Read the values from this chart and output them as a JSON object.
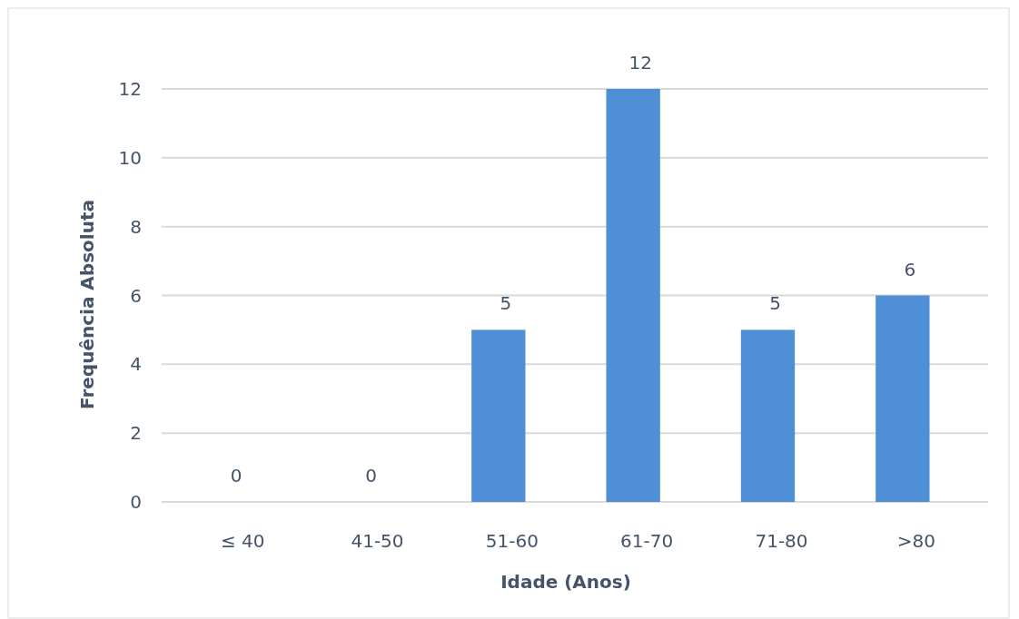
{
  "chart_data": {
    "type": "bar",
    "xlabel": "Idade (Anos)",
    "ylabel": "Frequência Absoluta",
    "categories": [
      "≤ 40",
      "41-50",
      "51-60",
      "61-70",
      "71-80",
      ">80"
    ],
    "values": [
      0,
      0,
      5,
      12,
      5,
      6
    ],
    "color": "#4f8fd6",
    "ylim": [
      0,
      12
    ],
    "yticks": [
      0,
      2,
      4,
      6,
      8,
      10,
      12
    ],
    "grid": "y",
    "data_labels": true
  }
}
